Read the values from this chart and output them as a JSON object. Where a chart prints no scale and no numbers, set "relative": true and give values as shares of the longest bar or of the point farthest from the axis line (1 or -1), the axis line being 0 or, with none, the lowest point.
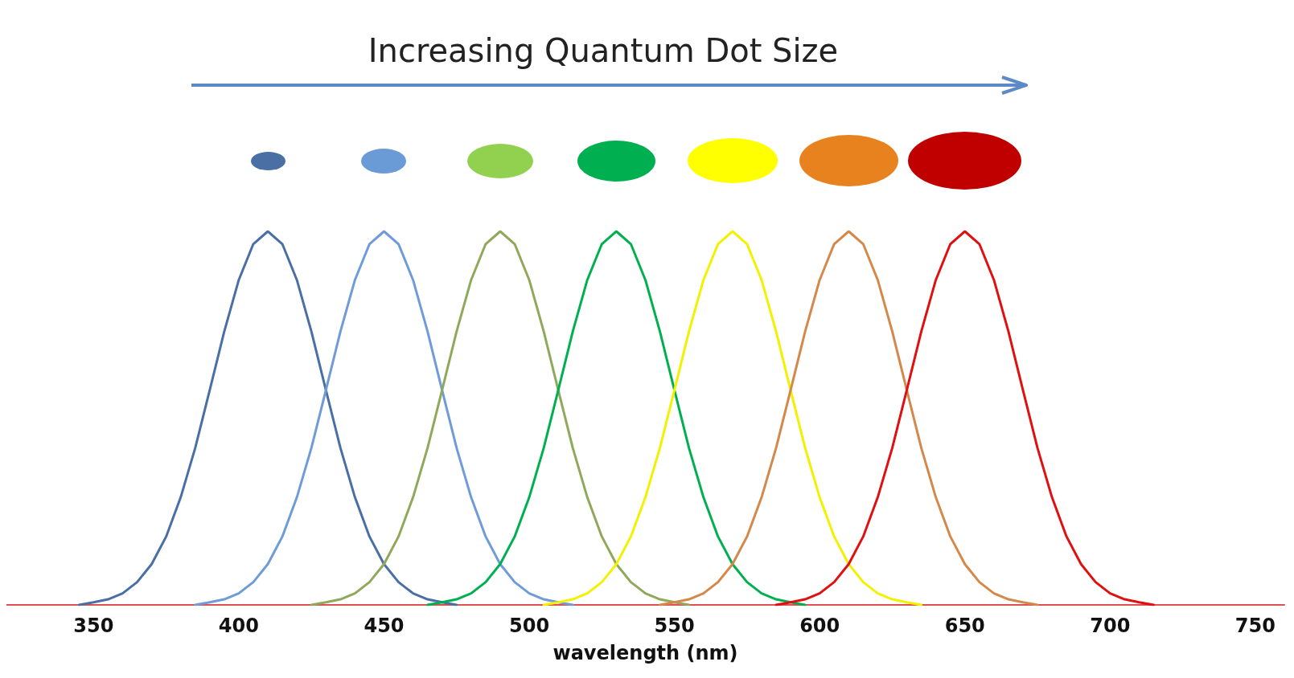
{
  "chart_data": {
    "type": "line",
    "title": "Increasing Quantum Dot Size",
    "xlabel": "wavelength (nm)",
    "relative": true,
    "marker": "none",
    "xlim": [
      320,
      760
    ],
    "xticks": [
      350,
      400,
      450,
      500,
      550,
      600,
      650,
      700,
      750
    ],
    "series": [
      {
        "color": "#4a6fa5",
        "x": [
          345,
          350,
          355,
          360,
          365,
          370,
          375,
          380,
          385,
          390,
          395,
          400,
          405,
          410,
          415,
          420,
          425,
          430,
          435,
          440,
          445,
          450,
          455,
          460,
          465,
          470,
          475
        ],
        "values": [
          0,
          0.007,
          0.015,
          0.031,
          0.061,
          0.109,
          0.183,
          0.288,
          0.42,
          0.575,
          0.732,
          0.87,
          0.966,
          1,
          0.966,
          0.87,
          0.732,
          0.575,
          0.42,
          0.288,
          0.183,
          0.109,
          0.061,
          0.031,
          0.015,
          0.007,
          0
        ]
      },
      {
        "color": "#6f9bd8",
        "x": [
          385,
          390,
          395,
          400,
          405,
          410,
          415,
          420,
          425,
          430,
          435,
          440,
          445,
          450,
          455,
          460,
          465,
          470,
          475,
          480,
          485,
          490,
          495,
          500,
          505,
          510,
          515
        ],
        "values": [
          0,
          0.007,
          0.015,
          0.031,
          0.061,
          0.109,
          0.183,
          0.288,
          0.42,
          0.575,
          0.732,
          0.87,
          0.966,
          1,
          0.966,
          0.87,
          0.732,
          0.575,
          0.42,
          0.288,
          0.183,
          0.109,
          0.061,
          0.031,
          0.015,
          0.007,
          0
        ]
      },
      {
        "color": "#8fa85a",
        "x": [
          425,
          430,
          435,
          440,
          445,
          450,
          455,
          460,
          465,
          470,
          475,
          480,
          485,
          490,
          495,
          500,
          505,
          510,
          515,
          520,
          525,
          530,
          535,
          540,
          545,
          550,
          555
        ],
        "values": [
          0,
          0.007,
          0.015,
          0.031,
          0.061,
          0.109,
          0.183,
          0.288,
          0.42,
          0.575,
          0.732,
          0.87,
          0.966,
          1,
          0.966,
          0.87,
          0.732,
          0.575,
          0.42,
          0.288,
          0.183,
          0.109,
          0.061,
          0.031,
          0.015,
          0.007,
          0
        ]
      },
      {
        "color": "#00b050",
        "x": [
          465,
          470,
          475,
          480,
          485,
          490,
          495,
          500,
          505,
          510,
          515,
          520,
          525,
          530,
          535,
          540,
          545,
          550,
          555,
          560,
          565,
          570,
          575,
          580,
          585,
          590,
          595
        ],
        "values": [
          0,
          0.007,
          0.015,
          0.031,
          0.061,
          0.109,
          0.183,
          0.288,
          0.42,
          0.575,
          0.732,
          0.87,
          0.966,
          1,
          0.966,
          0.87,
          0.732,
          0.575,
          0.42,
          0.288,
          0.183,
          0.109,
          0.061,
          0.031,
          0.015,
          0.007,
          0
        ]
      },
      {
        "color": "#f2f200",
        "x": [
          505,
          510,
          515,
          520,
          525,
          530,
          535,
          540,
          545,
          550,
          555,
          560,
          565,
          570,
          575,
          580,
          585,
          590,
          595,
          600,
          605,
          610,
          615,
          620,
          625,
          630,
          635
        ],
        "values": [
          0,
          0.007,
          0.015,
          0.031,
          0.061,
          0.109,
          0.183,
          0.288,
          0.42,
          0.575,
          0.732,
          0.87,
          0.966,
          1,
          0.966,
          0.87,
          0.732,
          0.575,
          0.42,
          0.288,
          0.183,
          0.109,
          0.061,
          0.031,
          0.015,
          0.007,
          0
        ]
      },
      {
        "color": "#d4884a",
        "x": [
          545,
          550,
          555,
          560,
          565,
          570,
          575,
          580,
          585,
          590,
          595,
          600,
          605,
          610,
          615,
          620,
          625,
          630,
          635,
          640,
          645,
          650,
          655,
          660,
          665,
          670,
          675
        ],
        "values": [
          0,
          0.007,
          0.015,
          0.031,
          0.061,
          0.109,
          0.183,
          0.288,
          0.42,
          0.575,
          0.732,
          0.87,
          0.966,
          1,
          0.966,
          0.87,
          0.732,
          0.575,
          0.42,
          0.288,
          0.183,
          0.109,
          0.061,
          0.031,
          0.015,
          0.007,
          0
        ]
      },
      {
        "color": "#e01010",
        "x": [
          585,
          590,
          595,
          600,
          605,
          610,
          615,
          620,
          625,
          630,
          635,
          640,
          645,
          650,
          655,
          660,
          665,
          670,
          675,
          680,
          685,
          690,
          695,
          700,
          705,
          710,
          715
        ],
        "values": [
          0,
          0.007,
          0.015,
          0.031,
          0.061,
          0.109,
          0.183,
          0.288,
          0.42,
          0.575,
          0.732,
          0.87,
          0.966,
          1,
          0.966,
          0.87,
          0.732,
          0.575,
          0.42,
          0.288,
          0.183,
          0.109,
          0.061,
          0.031,
          0.015,
          0.007,
          0
        ]
      }
    ]
  }
}
